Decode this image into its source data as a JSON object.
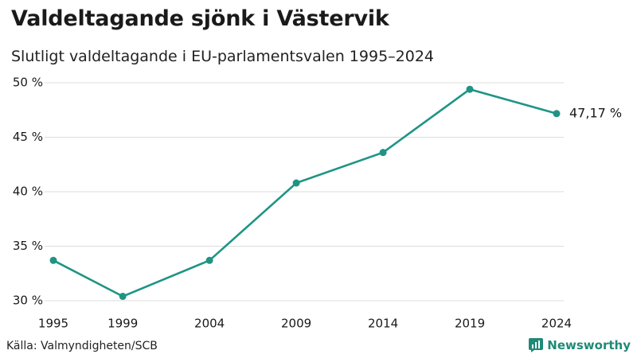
{
  "title": "Valdeltagande sjönk i Västervik",
  "subtitle": "Slutligt valdeltagande i EU-parlamentsvalen 1995–2024",
  "source": "Källa: Valmyndigheten/SCB",
  "brand": {
    "name": "Newsworthy",
    "icon": "newsworthy-logo-icon"
  },
  "colors": {
    "line": "#1f9484",
    "grid": "#dddddd",
    "text": "#1a1a1a"
  },
  "chart_data": {
    "type": "line",
    "x": [
      1995,
      1999,
      2004,
      2009,
      2014,
      2019,
      2024
    ],
    "xticks": [
      "1995",
      "1999",
      "2004",
      "2009",
      "2014",
      "2019",
      "2024"
    ],
    "values": [
      33.7,
      30.4,
      33.7,
      40.8,
      43.6,
      49.4,
      47.17
    ],
    "ylim": [
      30,
      50
    ],
    "yticks": [
      "30 %",
      "35 %",
      "40 %",
      "45 %",
      "50 %"
    ],
    "grid": true,
    "end_label": "47,17 %"
  }
}
